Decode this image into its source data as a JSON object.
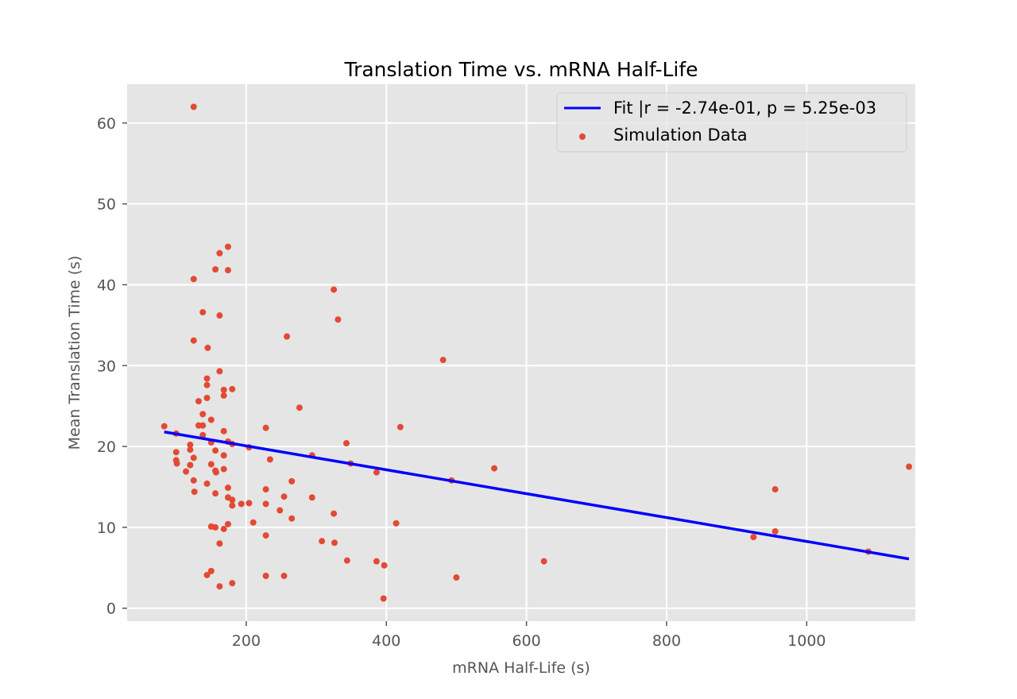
{
  "chart_data": {
    "type": "scatter",
    "title": "Translation Time vs. mRNA Half-Life",
    "xlabel": "mRNA Half-Life (s)",
    "ylabel": "Mean Translation Time (s)",
    "xlim": [
      30,
      1155
    ],
    "ylim": [
      -1.6,
      64.8
    ],
    "xticks": [
      200,
      400,
      600,
      800,
      1000
    ],
    "yticks": [
      0,
      10,
      20,
      30,
      40,
      50,
      60
    ],
    "grid": true,
    "legend_position": "top-right",
    "colors": {
      "background": "#E5E5E5",
      "grid": "#FFFFFF",
      "scatter": "#E24A33",
      "fit": "#0000FF"
    },
    "fit": {
      "name": "Fit |r = -2.74e-01, p = 5.25e-03",
      "x": [
        83,
        1146
      ],
      "y": [
        21.8,
        6.1
      ]
    },
    "series": [
      {
        "name": "Simulation Data",
        "x": [
          125,
          83,
          100,
          100,
          100,
          101,
          114,
          120,
          120,
          120,
          125,
          125,
          125,
          125,
          126,
          132,
          132,
          138,
          138,
          138,
          138,
          144,
          144,
          144,
          144,
          144,
          145,
          150,
          150,
          150,
          150,
          150,
          156,
          156,
          156,
          156,
          156,
          157,
          162,
          162,
          162,
          162,
          162,
          168,
          168,
          168,
          168,
          168,
          168,
          174,
          174,
          174,
          174,
          174,
          174,
          180,
          180,
          180,
          180,
          180,
          193,
          204,
          204,
          210,
          228,
          228,
          228,
          228,
          228,
          234,
          248,
          254,
          254,
          258,
          265,
          265,
          276,
          294,
          294,
          308,
          325,
          325,
          326,
          331,
          343,
          344,
          349,
          386,
          386,
          396,
          397,
          414,
          420,
          481,
          493,
          500,
          554,
          625,
          924,
          955,
          955,
          1088,
          1146
        ],
        "y": [
          62.0,
          22.5,
          21.6,
          19.3,
          18.3,
          17.9,
          16.9,
          19.6,
          20.2,
          17.7,
          40.7,
          33.1,
          18.6,
          15.8,
          14.4,
          25.6,
          22.6,
          24.0,
          22.6,
          21.4,
          36.6,
          28.4,
          27.6,
          26.0,
          15.4,
          4.1,
          32.2,
          23.3,
          20.5,
          17.8,
          10.1,
          4.6,
          41.9,
          19.5,
          17.0,
          14.2,
          10.0,
          16.8,
          43.9,
          29.3,
          8.0,
          2.7,
          36.2,
          27.0,
          26.3,
          18.9,
          9.8,
          21.9,
          17.2,
          14.9,
          13.7,
          10.4,
          44.7,
          41.8,
          20.6,
          20.3,
          12.7,
          27.1,
          13.4,
          3.1,
          12.9,
          19.9,
          13.0,
          10.6,
          9.0,
          4.0,
          14.7,
          12.9,
          22.3,
          18.4,
          12.1,
          13.8,
          4.0,
          33.6,
          15.7,
          11.1,
          24.8,
          18.9,
          13.7,
          8.3,
          39.4,
          11.7,
          8.1,
          35.7,
          20.4,
          5.9,
          17.9,
          16.8,
          5.8,
          1.2,
          5.3,
          10.5,
          22.4,
          30.7,
          15.8,
          3.8,
          17.3,
          5.8,
          8.8,
          14.7,
          9.5,
          7.0,
          17.5
        ]
      }
    ]
  }
}
